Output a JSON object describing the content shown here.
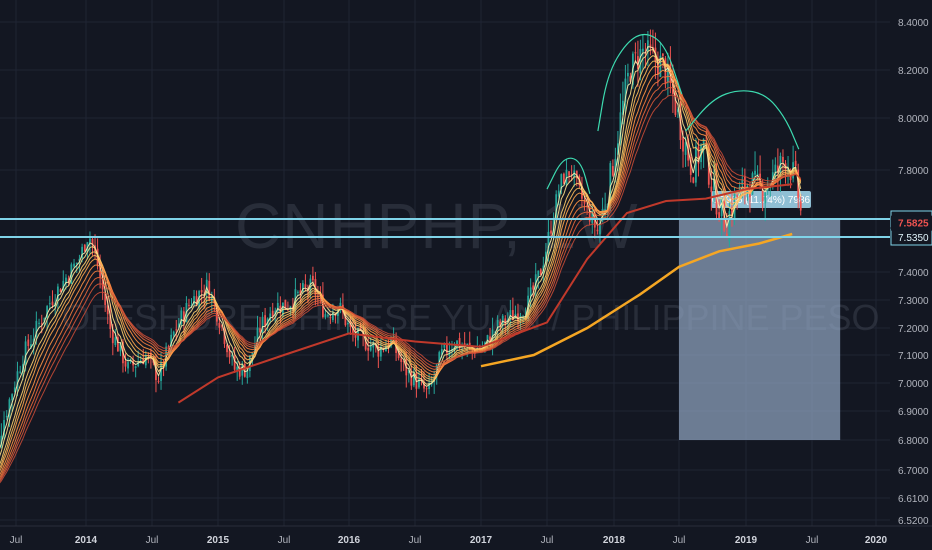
{
  "chart_data": {
    "type": "candlestick",
    "watermark": {
      "symbol": "CNHPHP, 1W",
      "name": "OFFSHORE CHINESE YUAN / PHILIPPINE PESO"
    },
    "y_ticks": [
      "8.4000",
      "8.2000",
      "8.0000",
      "7.8000",
      "7.4000",
      "7.3000",
      "7.2000",
      "7.1000",
      "7.0000",
      "6.9000",
      "6.8000",
      "6.7000",
      "6.6100",
      "6.5200"
    ],
    "ylim": [
      6.52,
      8.42
    ],
    "x_ticks": [
      {
        "label": "Jul",
        "t": 2013.5,
        "bold": false
      },
      {
        "label": "2014",
        "t": 2014.0,
        "bold": true
      },
      {
        "label": "Jul",
        "t": 2014.5,
        "bold": false
      },
      {
        "label": "2015",
        "t": 2015.0,
        "bold": true
      },
      {
        "label": "Jul",
        "t": 2015.5,
        "bold": false
      },
      {
        "label": "2016",
        "t": 2016.0,
        "bold": true
      },
      {
        "label": "Jul",
        "t": 2016.5,
        "bold": false
      },
      {
        "label": "2017",
        "t": 2017.0,
        "bold": true
      },
      {
        "label": "Jul",
        "t": 2017.5,
        "bold": false
      },
      {
        "label": "2018",
        "t": 2018.0,
        "bold": true
      },
      {
        "label": "Jul",
        "t": 2018.5,
        "bold": false
      },
      {
        "label": "2019",
        "t": 2019.0,
        "bold": true
      },
      {
        "label": "Jul",
        "t": 2019.5,
        "bold": false
      },
      {
        "label": "2020",
        "t": 2020.0,
        "bold": true
      }
    ],
    "horizontal_lines": [
      {
        "value": 7.5947,
        "label": "7.5947",
        "color": "#7fd3e8"
      },
      {
        "value": 7.535,
        "label": "7.5350",
        "color": "#7fd3e8"
      }
    ],
    "last_price": {
      "value": 7.5825,
      "label": "7.5825",
      "color": "#ef5350"
    },
    "price_range_box": {
      "t_start": 2018.5,
      "t_end": 2019.72,
      "y_top": 7.5947,
      "y_bottom": 6.8,
      "label": "0.7986 (11.74%) 7986",
      "color": "#8fa3bf"
    },
    "trend_points": [
      [
        2013.28,
        6.62
      ],
      [
        2013.4,
        6.85
      ],
      [
        2013.55,
        7.1
      ],
      [
        2013.75,
        7.3
      ],
      [
        2013.95,
        7.45
      ],
      [
        2014.02,
        7.55
      ],
      [
        2014.08,
        7.45
      ],
      [
        2014.18,
        7.2
      ],
      [
        2014.32,
        7.05
      ],
      [
        2014.45,
        7.1
      ],
      [
        2014.55,
        7.02
      ],
      [
        2014.68,
        7.2
      ],
      [
        2014.8,
        7.3
      ],
      [
        2014.92,
        7.35
      ],
      [
        2015.02,
        7.22
      ],
      [
        2015.12,
        7.05
      ],
      [
        2015.22,
        7.05
      ],
      [
        2015.32,
        7.2
      ],
      [
        2015.42,
        7.28
      ],
      [
        2015.52,
        7.28
      ],
      [
        2015.62,
        7.32
      ],
      [
        2015.72,
        7.35
      ],
      [
        2015.82,
        7.25
      ],
      [
        2015.92,
        7.28
      ],
      [
        2016.02,
        7.18
      ],
      [
        2016.12,
        7.15
      ],
      [
        2016.22,
        7.12
      ],
      [
        2016.32,
        7.15
      ],
      [
        2016.42,
        7.05
      ],
      [
        2016.52,
        7.0
      ],
      [
        2016.6,
        6.96
      ],
      [
        2016.7,
        7.1
      ],
      [
        2016.8,
        7.15
      ],
      [
        2016.92,
        7.12
      ],
      [
        2017.02,
        7.13
      ],
      [
        2017.12,
        7.2
      ],
      [
        2017.25,
        7.25
      ],
      [
        2017.35,
        7.28
      ],
      [
        2017.45,
        7.4
      ],
      [
        2017.52,
        7.55
      ],
      [
        2017.6,
        7.75
      ],
      [
        2017.68,
        7.8
      ],
      [
        2017.78,
        7.65
      ],
      [
        2017.88,
        7.55
      ],
      [
        2017.95,
        7.7
      ],
      [
        2018.05,
        8.0
      ],
      [
        2018.12,
        8.2
      ],
      [
        2018.22,
        8.28
      ],
      [
        2018.3,
        8.25
      ],
      [
        2018.38,
        8.22
      ],
      [
        2018.45,
        8.1
      ],
      [
        2018.52,
        7.95
      ],
      [
        2018.6,
        7.8
      ],
      [
        2018.68,
        7.9
      ],
      [
        2018.76,
        7.7
      ],
      [
        2018.85,
        7.58
      ],
      [
        2018.92,
        7.68
      ],
      [
        2019.02,
        7.75
      ],
      [
        2019.12,
        7.72
      ],
      [
        2019.22,
        7.78
      ],
      [
        2019.3,
        7.85
      ],
      [
        2019.38,
        7.75
      ],
      [
        2019.42,
        7.6
      ]
    ],
    "sma_long": [
      [
        2017.0,
        7.06
      ],
      [
        2017.4,
        7.1
      ],
      [
        2017.8,
        7.2
      ],
      [
        2018.2,
        7.32
      ],
      [
        2018.5,
        7.42
      ],
      [
        2018.8,
        7.48
      ],
      [
        2019.1,
        7.51
      ],
      [
        2019.35,
        7.545
      ]
    ],
    "ma_mid": [
      [
        2014.7,
        6.93
      ],
      [
        2015.0,
        7.02
      ],
      [
        2015.5,
        7.1
      ],
      [
        2016.0,
        7.18
      ],
      [
        2016.5,
        7.15
      ],
      [
        2017.0,
        7.13
      ],
      [
        2017.5,
        7.22
      ],
      [
        2017.8,
        7.45
      ],
      [
        2018.1,
        7.62
      ],
      [
        2018.4,
        7.67
      ],
      [
        2018.7,
        7.68
      ],
      [
        2019.0,
        7.72
      ],
      [
        2019.35,
        7.74
      ]
    ],
    "hs_curves": [
      [
        [
          2017.5,
          7.72
        ],
        [
          2017.62,
          7.85
        ],
        [
          2017.75,
          7.84
        ],
        [
          2017.82,
          7.7
        ]
      ],
      [
        [
          2017.88,
          7.95
        ],
        [
          2017.95,
          8.18
        ],
        [
          2018.1,
          8.32
        ],
        [
          2018.25,
          8.36
        ],
        [
          2018.4,
          8.3
        ],
        [
          2018.52,
          8.1
        ]
      ],
      [
        [
          2018.55,
          7.95
        ],
        [
          2018.75,
          8.08
        ],
        [
          2018.95,
          8.12
        ],
        [
          2019.15,
          8.1
        ],
        [
          2019.3,
          8.0
        ],
        [
          2019.4,
          7.88
        ]
      ]
    ]
  }
}
